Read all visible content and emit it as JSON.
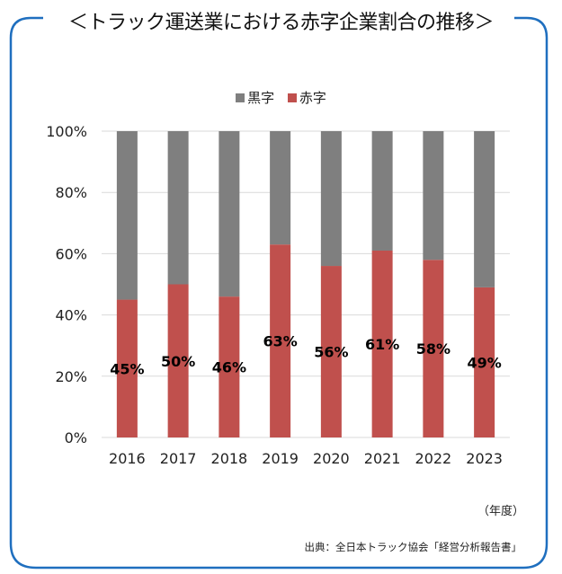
{
  "title": "＜トラック運送業における赤字企業割合の推移＞",
  "unit_label": "（年度）",
  "source": "出典：全日本トラック協会「経営分析報告書」",
  "colors": {
    "frame": "#1f6fbf",
    "black_ink": "#7f7f7f",
    "red_ink": "#c0504d",
    "grid": "#d9d9d9"
  },
  "chart_data": {
    "type": "bar",
    "stacked": true,
    "title": "＜トラック運送業における赤字企業割合の推移＞",
    "xlabel": "（年度）",
    "ylabel": "",
    "ylim": [
      0,
      100
    ],
    "yticks": [
      "0%",
      "20%",
      "40%",
      "60%",
      "80%",
      "100%"
    ],
    "ytick_values": [
      0,
      20,
      40,
      60,
      80,
      100
    ],
    "categories": [
      "2016",
      "2017",
      "2018",
      "2019",
      "2020",
      "2021",
      "2022",
      "2023"
    ],
    "legend": {
      "position": "top",
      "entries": [
        "黒字",
        "赤字"
      ]
    },
    "series": [
      {
        "name": "赤字",
        "color": "#c0504d",
        "values": [
          45,
          50,
          46,
          63,
          56,
          61,
          58,
          49
        ]
      },
      {
        "name": "黒字",
        "color": "#7f7f7f",
        "values": [
          55,
          50,
          54,
          37,
          44,
          39,
          42,
          51
        ]
      }
    ],
    "data_labels": [
      "45%",
      "50%",
      "46%",
      "63%",
      "56%",
      "61%",
      "58%",
      "49%"
    ],
    "grid": true
  }
}
